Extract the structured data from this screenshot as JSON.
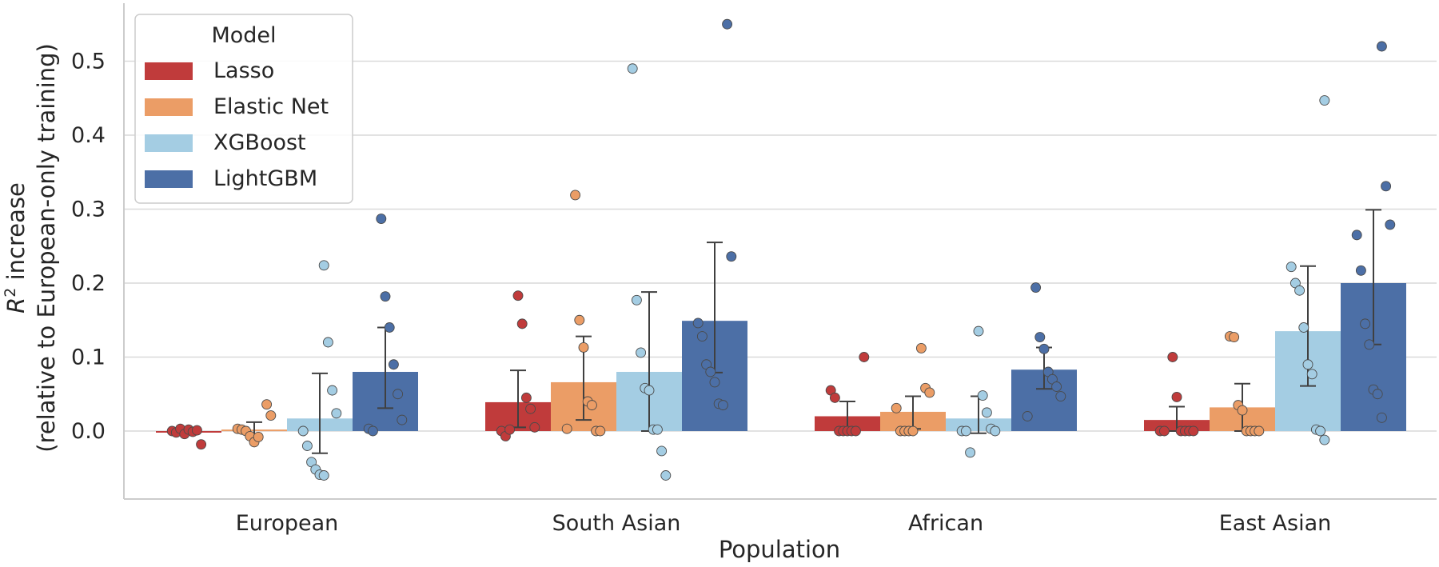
{
  "chart_data": {
    "type": "bar",
    "xlabel": "Population",
    "ylabel_line1_prefix": "R",
    "ylabel_line1_sup": "2",
    "ylabel_line1_suffix": " increase",
    "ylabel_line2": "(relative to European-only training)",
    "ylim": [
      -0.095,
      0.575
    ],
    "yticks": [
      0.0,
      0.1,
      0.2,
      0.3,
      0.4,
      0.5
    ],
    "ytick_labels": [
      "0.0",
      "0.1",
      "0.2",
      "0.3",
      "0.4",
      "0.5"
    ],
    "grid": true,
    "legend": {
      "title": "Model",
      "position": "top-left"
    },
    "categories": [
      "European",
      "South Asian",
      "African",
      "East Asian"
    ],
    "series": [
      {
        "name": "Lasso",
        "color": "#c03b3b",
        "values": [
          -0.002,
          0.039,
          0.02,
          0.015
        ],
        "err_low": [
          -0.005,
          0.005,
          0.0,
          0.0
        ],
        "err_high": [
          0.001,
          0.082,
          0.04,
          0.033
        ],
        "points": [
          [
            0.0,
            -0.002,
            0.003,
            -0.004,
            0.002,
            -0.001,
            0.001,
            -0.018
          ],
          [
            0.183,
            0.145,
            0.045,
            0.03,
            0.005,
            0.0,
            -0.007,
            0.002
          ],
          [
            0.1,
            0.055,
            0.045,
            0.0,
            0.0,
            0.0,
            0.0,
            0.0
          ],
          [
            0.1,
            0.046,
            0.0,
            0.0,
            0.0,
            0.0,
            0.0,
            0.0
          ]
        ]
      },
      {
        "name": "Elastic Net",
        "color": "#eb9d66",
        "values": [
          0.002,
          0.066,
          0.026,
          0.032
        ],
        "err_low": [
          -0.004,
          0.015,
          0.003,
          0.0
        ],
        "err_high": [
          0.012,
          0.128,
          0.047,
          0.064
        ],
        "points": [
          [
            0.036,
            0.021,
            0.003,
            0.002,
            0.0,
            -0.007,
            -0.015,
            -0.008
          ],
          [
            0.319,
            0.15,
            0.113,
            0.04,
            0.035,
            0.0,
            0.0,
            0.003
          ],
          [
            0.112,
            0.058,
            0.052,
            0.031,
            0.0,
            0.0,
            0.0,
            0.0
          ],
          [
            0.128,
            0.127,
            0.035,
            0.028,
            0.0,
            0.0,
            0.0,
            0.0
          ]
        ]
      },
      {
        "name": "XGBoost",
        "color": "#a4cde3",
        "values": [
          0.017,
          0.08,
          0.017,
          0.135
        ],
        "err_low": [
          -0.03,
          0.0,
          -0.003,
          0.061
        ],
        "err_high": [
          0.078,
          0.188,
          0.047,
          0.223
        ],
        "points": [
          [
            0.224,
            0.12,
            0.055,
            0.024,
            0.0,
            -0.02,
            -0.042,
            -0.052,
            -0.059,
            -0.06
          ],
          [
            0.49,
            0.177,
            0.106,
            0.058,
            0.055,
            0.002,
            0.002,
            -0.027,
            -0.06
          ],
          [
            0.135,
            0.048,
            0.025,
            0.003,
            0.0,
            0.0,
            0.0,
            -0.029
          ],
          [
            0.447,
            0.222,
            0.2,
            0.19,
            0.14,
            0.09,
            0.077,
            0.002,
            0.0,
            -0.012
          ]
        ]
      },
      {
        "name": "LightGBM",
        "color": "#4c6fa6",
        "values": [
          0.08,
          0.149,
          0.083,
          0.2
        ],
        "err_low": [
          0.031,
          0.079,
          0.057,
          0.117
        ],
        "err_high": [
          0.14,
          0.255,
          0.113,
          0.299
        ],
        "points": [
          [
            0.287,
            0.182,
            0.14,
            0.09,
            0.05,
            0.015,
            0.003,
            0.0
          ],
          [
            0.55,
            0.236,
            0.146,
            0.128,
            0.09,
            0.08,
            0.066,
            0.037,
            0.035
          ],
          [
            0.194,
            0.127,
            0.111,
            0.08,
            0.07,
            0.06,
            0.047,
            0.02
          ],
          [
            0.52,
            0.331,
            0.279,
            0.265,
            0.217,
            0.145,
            0.117,
            0.056,
            0.05,
            0.018
          ]
        ]
      }
    ]
  }
}
